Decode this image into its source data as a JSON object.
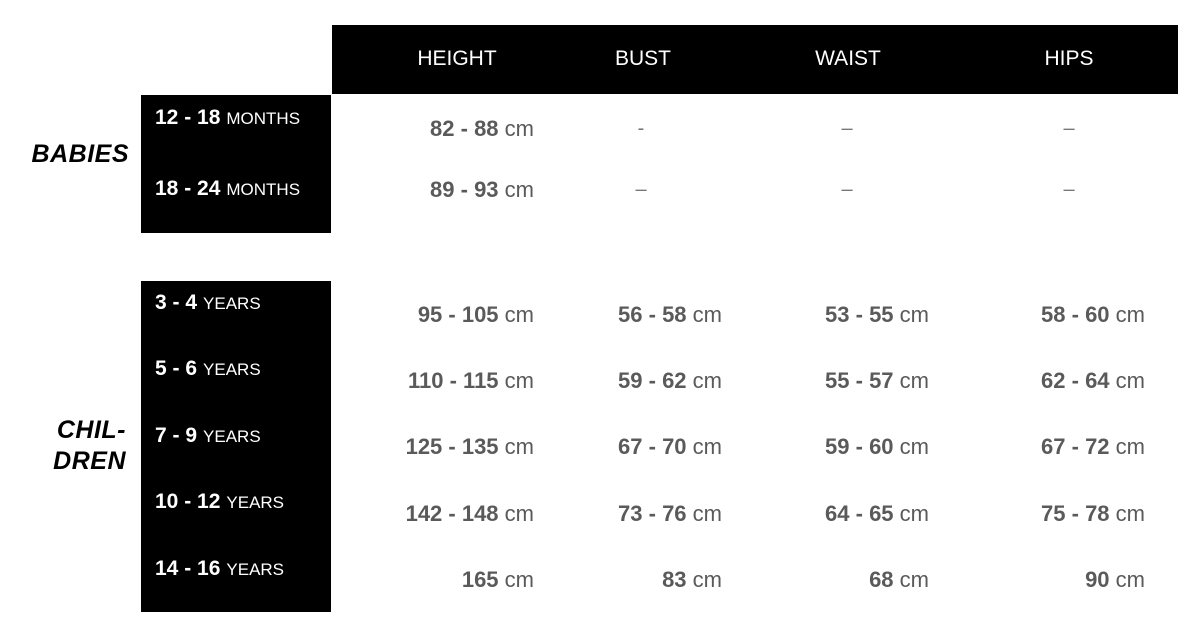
{
  "headers": [
    "HEIGHT",
    "BUST",
    "WAIST",
    "HIPS"
  ],
  "groups": [
    {
      "label_lines": [
        "BABIES"
      ],
      "rows": [
        {
          "age": "12 - 18",
          "unit": "MONTHS",
          "height": "82 - 88",
          "bust": "-",
          "waist": "–",
          "hips": "–"
        },
        {
          "age": "18 - 24",
          "unit": "MONTHS",
          "height": "89 - 93",
          "bust": "–",
          "waist": "–",
          "hips": "–"
        }
      ]
    },
    {
      "label_lines": [
        "CHIL-",
        "DREN"
      ],
      "rows": [
        {
          "age": "3 - 4",
          "unit": "YEARS",
          "height": "95 - 105",
          "bust": "56 - 58",
          "waist": "53 - 55",
          "hips": "58 - 60"
        },
        {
          "age": "5 - 6",
          "unit": "YEARS",
          "height": "110 - 115",
          "bust": "59 - 62",
          "waist": "55 - 57",
          "hips": "62 - 64"
        },
        {
          "age": "7 - 9",
          "unit": "YEARS",
          "height": "125 - 135",
          "bust": "67 - 70",
          "waist": "59 - 60",
          "hips": "67 - 72"
        },
        {
          "age": "10 - 12",
          "unit": "YEARS",
          "height": "142 - 148",
          "bust": "73 - 76",
          "waist": "64 - 65",
          "hips": "75 - 78"
        },
        {
          "age": "14 - 16",
          "unit": "YEARS",
          "height": "165",
          "bust": "83",
          "waist": "68",
          "hips": "90"
        }
      ]
    }
  ],
  "unit_cm": "cm",
  "colors": {
    "header_bg": "#000000",
    "value_text": "#5a5a5a"
  }
}
